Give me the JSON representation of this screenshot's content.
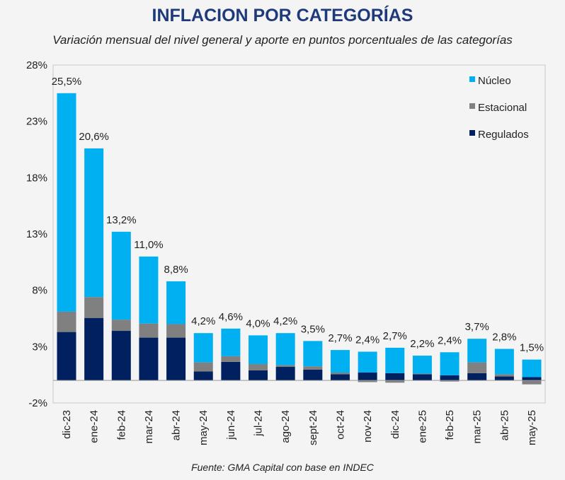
{
  "chart_data": {
    "type": "bar",
    "stacked": true,
    "title": "INFLACION POR CATEGORÍAS",
    "subtitle": "Variación mensual del nivel general y aporte en puntos porcentuales de las categorías",
    "source": "Fuente: GMA Capital con base en INDEC",
    "categories": [
      "dic-23",
      "ene-24",
      "feb-24",
      "mar-24",
      "abr-24",
      "may-24",
      "jun-24",
      "jul-24",
      "ago-24",
      "sept-24",
      "oct-24",
      "nov-24",
      "dic-24",
      "ene-25",
      "feb-25",
      "mar-25",
      "abr-25",
      "may-25"
    ],
    "series": [
      {
        "name": "Regulados",
        "color": "#002060",
        "values": [
          4.3,
          5.55,
          4.4,
          3.8,
          3.8,
          0.8,
          1.65,
          0.9,
          1.2,
          0.95,
          0.55,
          0.7,
          0.65,
          0.55,
          0.45,
          0.65,
          0.35,
          0.3
        ]
      },
      {
        "name": "Estacional",
        "color": "#808080",
        "values": [
          1.8,
          1.85,
          1.0,
          1.25,
          1.2,
          0.8,
          0.5,
          0.55,
          0.15,
          0.3,
          0.15,
          -0.15,
          -0.2,
          0.05,
          -0.1,
          0.95,
          0.2,
          -0.35
        ]
      },
      {
        "name": "Núcleo",
        "color": "#00b0f0",
        "values": [
          19.4,
          13.2,
          7.8,
          5.95,
          3.8,
          2.6,
          2.45,
          2.55,
          2.85,
          2.25,
          2.0,
          1.85,
          2.25,
          1.6,
          2.05,
          2.1,
          2.25,
          1.55
        ]
      }
    ],
    "totals": [
      "25,5%",
      "20,6%",
      "13,2%",
      "11,0%",
      "8,8%",
      "4,2%",
      "4,6%",
      "4,0%",
      "4,2%",
      "3,5%",
      "2,7%",
      "2,4%",
      "2,7%",
      "2,2%",
      "2,4%",
      "3,7%",
      "2,8%",
      "1,5%"
    ],
    "total_values": [
      25.5,
      20.6,
      13.2,
      11.0,
      8.8,
      4.2,
      4.6,
      4.0,
      4.2,
      3.5,
      2.7,
      2.4,
      2.7,
      2.2,
      2.4,
      3.7,
      2.8,
      1.5
    ],
    "yticks": [
      "-2%",
      "3%",
      "8%",
      "13%",
      "18%",
      "23%",
      "28%"
    ],
    "ytick_values": [
      -2,
      3,
      8,
      13,
      18,
      23,
      28
    ],
    "ylim": [
      -2,
      28
    ],
    "grid": false,
    "legend_position": "top-right",
    "legend_order": [
      "Núcleo",
      "Estacional",
      "Regulados"
    ]
  }
}
